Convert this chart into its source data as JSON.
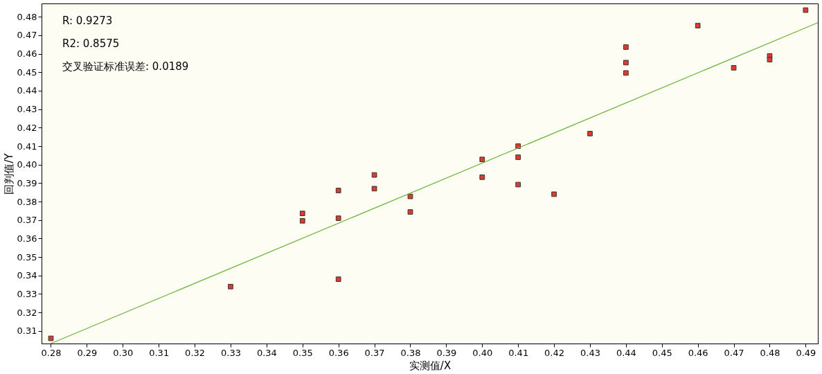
{
  "chart_data": {
    "type": "scatter",
    "xlabel": "实测值/X",
    "ylabel": "回判值/Y",
    "grid": false,
    "annotations": [
      "R: 0.9273",
      "R2: 0.8575",
      "交叉验证标准误差: 0.0189"
    ],
    "xlim": [
      0.2774,
      0.4934
    ],
    "ylim": [
      0.3032,
      0.4872
    ],
    "xticks": [
      0.28,
      0.29,
      {
        "value": 0.3,
        "label": "0.30"
      },
      0.31,
      0.32,
      0.33,
      0.34,
      0.35,
      0.36,
      0.37,
      0.38,
      0.39,
      {
        "value": 0.4,
        "label": "0.40"
      },
      0.41,
      0.42,
      0.43,
      0.44,
      0.45,
      0.46,
      0.47,
      0.48,
      0.49
    ],
    "yticks": [
      0.31,
      0.32,
      0.33,
      0.34,
      0.35,
      0.36,
      0.37,
      0.38,
      0.39,
      {
        "value": 0.4,
        "label": "0.40"
      },
      0.41,
      0.42,
      0.43,
      0.44,
      0.45,
      0.46,
      0.47,
      0.48
    ],
    "series": [
      {
        "marker": "square",
        "color": "#e03a2e",
        "x": [
          0.28,
          0.33,
          0.35,
          0.35,
          0.36,
          0.36,
          0.36,
          0.37,
          0.37,
          0.38,
          0.38,
          0.4,
          0.4,
          0.41,
          0.41,
          0.41,
          0.42,
          0.43,
          0.44,
          0.44,
          0.44,
          0.46,
          0.47,
          0.48,
          0.48,
          0.49
        ],
        "values": [
          0.306,
          0.334,
          0.3736,
          0.3696,
          0.386,
          0.371,
          0.338,
          0.3944,
          0.387,
          0.3828,
          0.3744,
          0.4028,
          0.3932,
          0.41,
          0.404,
          0.3892,
          0.384,
          0.4168,
          0.4636,
          0.4552,
          0.4496,
          0.4752,
          0.4524,
          0.4588,
          0.4568,
          0.4836
        ]
      },
      {
        "type": "line",
        "color": "#6cb33a",
        "x": [
          0.28,
          0.4934
        ],
        "values": [
          0.3032,
          0.4768
        ]
      }
    ]
  }
}
